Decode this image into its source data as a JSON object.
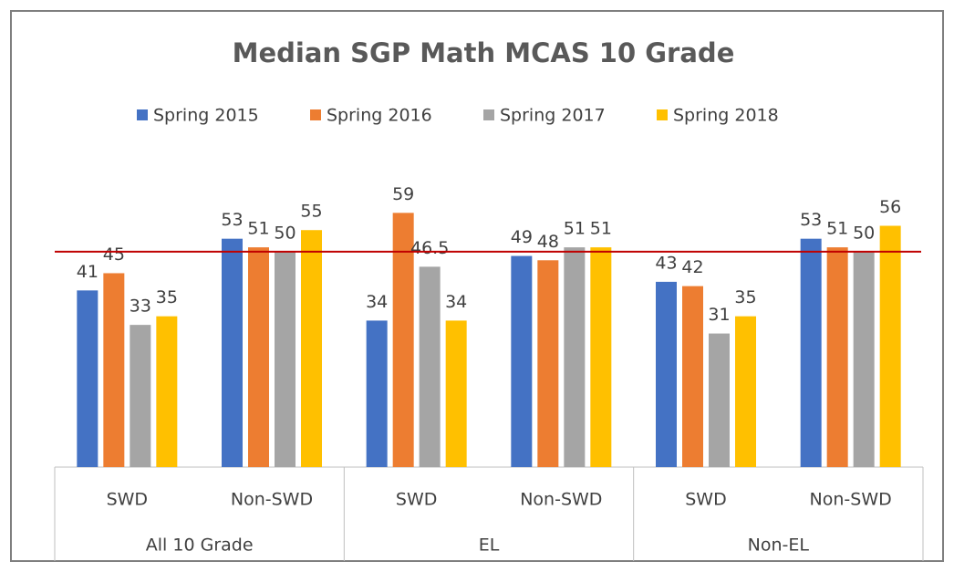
{
  "chart_data": {
    "type": "bar",
    "title": "Median SGP Math MCAS 10 Grade",
    "categories": [
      "SWD",
      "Non-SWD",
      "SWD",
      "Non-SWD",
      "SWD",
      "Non-SWD"
    ],
    "groups": [
      "All 10 Grade",
      "EL",
      "Non-EL"
    ],
    "series": [
      {
        "name": "Spring 2015",
        "color": "#4472c4",
        "values": [
          41,
          53,
          34,
          49,
          43,
          53
        ]
      },
      {
        "name": "Spring 2016",
        "color": "#ed7d31",
        "values": [
          45,
          51,
          59,
          48,
          42,
          51
        ]
      },
      {
        "name": "Spring 2017",
        "color": "#a5a5a5",
        "values": [
          33,
          50,
          46.5,
          51,
          31,
          50
        ]
      },
      {
        "name": "Spring 2018",
        "color": "#ffc000",
        "values": [
          35,
          55,
          34,
          51,
          35,
          56
        ]
      }
    ],
    "ylim": [
      0,
      65
    ],
    "reference_line": {
      "value": 50,
      "color": "#c00000"
    },
    "legend": "top"
  }
}
